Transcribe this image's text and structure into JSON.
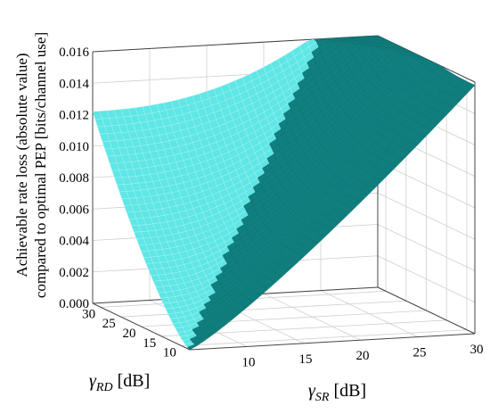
{
  "chart_data": {
    "type": "surface3d",
    "zlabel_line1": "Achievable rate loss (absolute value)",
    "zlabel_line2": "compared to optimal PEP [bits/channel use]",
    "xlabel_symbol": "γ",
    "xlabel_sub": "SR",
    "xlabel_unit": " [dB]",
    "ylabel_symbol": "γ",
    "ylabel_sub": "RD",
    "ylabel_unit": " [dB]",
    "x_range": [
      5,
      30
    ],
    "y_range": [
      8,
      32
    ],
    "z_range": [
      0,
      0.016
    ],
    "x_ticks": [
      "10",
      "15",
      "20",
      "25",
      "30"
    ],
    "y_ticks": [
      "10",
      "15",
      "20",
      "25",
      "30"
    ],
    "z_ticks": [
      "0.000",
      "0.002",
      "0.004",
      "0.006",
      "0.008",
      "0.010",
      "0.012",
      "0.014",
      "0.016"
    ],
    "surface_colors": {
      "dark_face": "#0f7f7f",
      "light_face": "#5fe6e6",
      "mesh_light": "#b8f5f5",
      "mesh_dark": "#0a6a6a"
    },
    "series": [
      {
        "name": "",
        "description_points": [
          {
            "x": 5,
            "y": 8,
            "z": 0.0
          },
          {
            "x": 30,
            "y": 8,
            "z": 0.0158
          },
          {
            "x": 5,
            "y": 32,
            "z": 0.0122
          },
          {
            "x": 30,
            "y": 32,
            "z": 0.016
          }
        ]
      }
    ]
  }
}
